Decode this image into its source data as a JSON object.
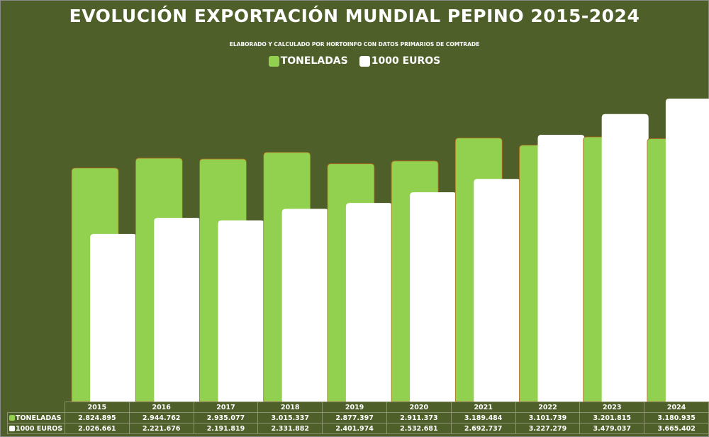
{
  "chart_data": {
    "type": "bar",
    "title": "EVOLUCIÓN EXPORTACIÓN MUNDIAL PEPINO 2015-2024",
    "subtitle": "ELABORADO Y CALCULADO POR HORTOINFO CON DATOS PRIMARIOS DE COMTRADE",
    "categories": [
      "2015",
      "2016",
      "2017",
      "2018",
      "2019",
      "2020",
      "2021",
      "2022",
      "2023",
      "2024"
    ],
    "series": [
      {
        "name": "TONELADAS",
        "color": "#92d050",
        "values": [
          2824895,
          2944762,
          2935077,
          3015337,
          2877397,
          2911373,
          3189484,
          3101739,
          3201815,
          3180935
        ],
        "labels": [
          "2.824.895",
          "2.944.762",
          "2.935.077",
          "3.015.337",
          "2.877.397",
          "2.911.373",
          "3.189.484",
          "3.101.739",
          "3.201.815",
          "3.180.935"
        ]
      },
      {
        "name": "1000 EUROS",
        "color": "#ffffff",
        "values": [
          2026661,
          2221676,
          2191819,
          2331882,
          2401974,
          2532681,
          2692737,
          3227279,
          3479037,
          3665402
        ],
        "labels": [
          "2.026.661",
          "2.221.676",
          "2.191.819",
          "2.331.882",
          "2.401.974",
          "2.532.681",
          "2.692.737",
          "3.227.279",
          "3.479.037",
          "3.665.402"
        ]
      }
    ],
    "ylim": [
      0,
      4000000
    ],
    "grid": false,
    "legend": "top-center",
    "data_table": true
  }
}
